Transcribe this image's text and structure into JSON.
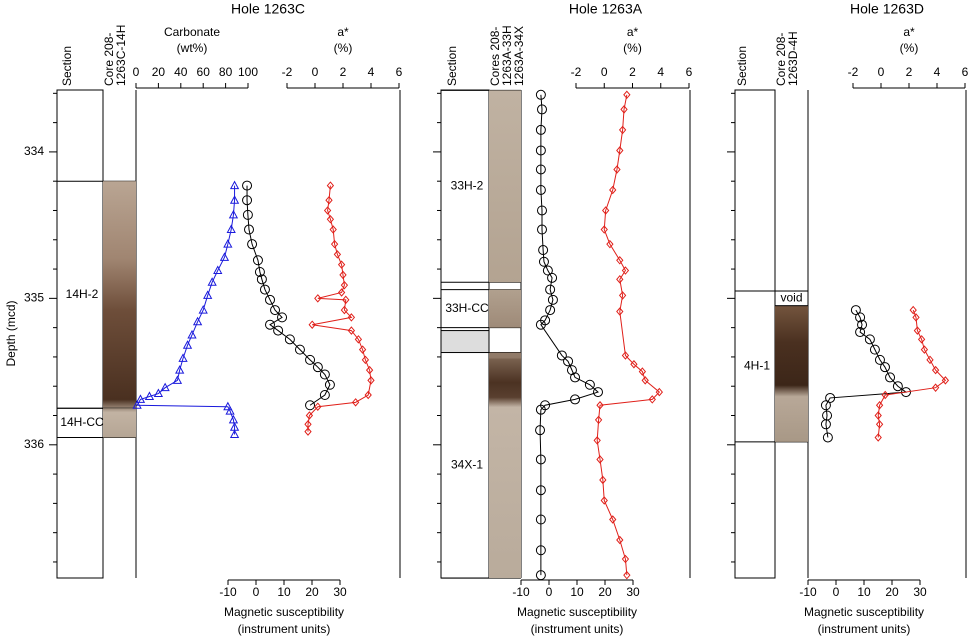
{
  "chart_data": [
    {
      "type": "line",
      "title": "Hole 1263C",
      "ylabel": "Depth (mcd)",
      "ylim": [
        333.55,
        336.93
      ],
      "yticks": [
        334,
        335,
        336
      ],
      "section_header": "Section",
      "core_header": [
        "Core 208-",
        "1263C-14H"
      ],
      "sections": [
        {
          "label": "14H-2",
          "top": 334.2,
          "bottom": 335.75
        },
        {
          "label": "14H-CC",
          "top": 335.75,
          "bottom": 335.95
        }
      ],
      "axes": [
        {
          "label": [
            "Carbonate",
            "(wt%)"
          ],
          "position": "top",
          "xlim": [
            0,
            100
          ],
          "xticks": [
            0,
            20,
            40,
            60,
            80,
            100
          ]
        },
        {
          "label": [
            "a*",
            "(%)"
          ],
          "position": "top",
          "xlim": [
            -2,
            6
          ],
          "xticks": [
            -2,
            0,
            2,
            4,
            6
          ]
        },
        {
          "label": [
            "Magnetic susceptibility",
            "(instrument units)"
          ],
          "position": "bottom",
          "xlim": [
            -10,
            30
          ],
          "xticks": [
            -10,
            0,
            10,
            20,
            30
          ]
        }
      ],
      "series": [
        {
          "axis": 0,
          "color": "#1a1adc",
          "marker": "triangle",
          "line": true,
          "values": [
            88,
            88,
            87,
            85,
            82,
            79,
            73,
            68,
            64,
            60,
            55,
            50,
            46,
            42,
            39,
            37,
            26,
            20,
            12,
            4,
            1,
            82,
            84,
            87,
            88,
            88
          ],
          "depths": [
            334.23,
            334.33,
            334.43,
            334.53,
            334.63,
            334.72,
            334.81,
            334.89,
            334.98,
            335.08,
            335.16,
            335.25,
            335.32,
            335.41,
            335.49,
            335.56,
            335.61,
            335.65,
            335.67,
            335.69,
            335.73,
            335.74,
            335.77,
            335.83,
            335.88,
            335.93
          ]
        },
        {
          "axis": 2,
          "color": "#000000",
          "marker": "circle",
          "line": true,
          "values": [
            -3.2,
            -3.2,
            -2.9,
            -2.5,
            -1.4,
            0.7,
            1.4,
            2.1,
            3.2,
            5,
            6.8,
            9.3,
            5,
            7.9,
            12.1,
            15.7,
            19.3,
            22.1,
            24.6,
            26.4,
            24.6,
            19.3
          ],
          "depths": [
            334.23,
            334.33,
            334.43,
            334.53,
            334.63,
            334.74,
            334.82,
            334.87,
            334.94,
            335.01,
            335.08,
            335.13,
            335.18,
            335.22,
            335.28,
            335.35,
            335.42,
            335.47,
            335.52,
            335.59,
            335.66,
            335.73
          ]
        },
        {
          "axis": 1,
          "color": "#e0201a",
          "marker": "diamond",
          "line": true,
          "values": [
            1.1,
            1.0,
            0.9,
            1.1,
            1.3,
            1.4,
            1.6,
            1.9,
            2,
            2.1,
            1.9,
            0.2,
            2.2,
            2.1,
            2.6,
            -0.2,
            2.6,
            3.1,
            3.4,
            3.6,
            3.9,
            4,
            3.8,
            2.9,
            0.2,
            -0.4,
            -0.5,
            -0.5
          ],
          "depths": [
            334.23,
            334.33,
            334.4,
            334.46,
            334.53,
            334.63,
            334.7,
            334.77,
            334.84,
            334.91,
            334.96,
            335.0,
            335.01,
            335.08,
            335.13,
            335.18,
            335.22,
            335.28,
            335.35,
            335.42,
            335.49,
            335.56,
            335.66,
            335.71,
            335.74,
            335.8,
            335.86,
            335.91
          ]
        }
      ]
    },
    {
      "type": "line",
      "title": "Hole 1263A",
      "ylim": [
        333.55,
        336.93
      ],
      "section_header": "Section",
      "core_header": [
        "Cores 208-",
        "1263A-33H",
        "1263A-34X"
      ],
      "sections": [
        {
          "label": "33H-2",
          "top": 333.58,
          "bottom": 334.89
        },
        {
          "label": "33H-CC",
          "top": 334.94,
          "bottom": 335.2
        },
        {
          "label": "34X-1",
          "top": 335.37,
          "bottom": 336.91
        }
      ],
      "gaps": [
        {
          "top": 335.22,
          "bottom": 335.37
        }
      ],
      "axes": [
        {
          "label": [
            "a*",
            "(%)"
          ],
          "position": "top",
          "xlim": [
            -2,
            6
          ],
          "xticks": [
            -2,
            0,
            2,
            4,
            6
          ]
        },
        {
          "label": [
            "Magnetic susceptibility",
            "(instrument units)"
          ],
          "position": "bottom",
          "xlim": [
            -10,
            30
          ],
          "xticks": [
            -10,
            0,
            10,
            20,
            30
          ]
        }
      ],
      "series": [
        {
          "axis": 1,
          "color": "#000000",
          "marker": "circle",
          "line": true,
          "values": [
            -2.9,
            -2.5,
            -2.9,
            -2.9,
            -2.9,
            -2.9,
            -2.5,
            -2.5,
            -2.1,
            -1.8,
            -0.4,
            1.1,
            0.4,
            1.4,
            0.4,
            -1.4,
            -2.9,
            4.6,
            6.8,
            8.2,
            9.3,
            14.6,
            17.5,
            9.3,
            -1.4,
            -2.9,
            -3.2,
            -2.9,
            -2.9,
            -2.9,
            -2.9,
            -2.9
          ],
          "depths": [
            333.61,
            333.71,
            333.85,
            333.99,
            334.12,
            334.26,
            334.4,
            334.53,
            334.67,
            334.75,
            334.81,
            334.86,
            334.94,
            335.01,
            335.08,
            335.15,
            335.18,
            335.39,
            335.43,
            335.49,
            335.54,
            335.59,
            335.64,
            335.69,
            335.73,
            335.76,
            335.9,
            336.1,
            336.31,
            336.51,
            336.72,
            336.89
          ]
        },
        {
          "axis": 0,
          "color": "#e0201a",
          "marker": "diamond",
          "line": true,
          "values": [
            1.6,
            1.4,
            1.3,
            1.1,
            0.9,
            0.6,
            0.1,
            0,
            0.4,
            1.1,
            1.5,
            1.1,
            1.3,
            1.1,
            1.5,
            2.1,
            2.7,
            2.9,
            3.9,
            3.4,
            -0.3,
            -0.4,
            -0.5,
            -0.3,
            -0.1,
            0,
            0.6,
            1.1,
            1.5,
            1.6
          ],
          "depths": [
            333.61,
            333.71,
            333.85,
            333.99,
            334.12,
            334.26,
            334.4,
            334.53,
            334.63,
            334.74,
            334.81,
            334.87,
            334.98,
            335.09,
            335.39,
            335.45,
            335.5,
            335.56,
            335.64,
            335.69,
            335.73,
            335.83,
            335.97,
            336.1,
            336.24,
            336.38,
            336.51,
            336.65,
            336.78,
            336.89
          ]
        }
      ]
    },
    {
      "type": "line",
      "title": "Hole 1263D",
      "ylim": [
        333.55,
        336.93
      ],
      "section_header": "Section",
      "core_header": [
        "Core 208-",
        "1263D-4H"
      ],
      "sections": [
        {
          "label": "4H-1",
          "top": 334.95,
          "bottom": 335.98
        }
      ],
      "voids": [
        {
          "label": "void",
          "top": 334.95,
          "bottom": 335.05
        }
      ],
      "axes": [
        {
          "label": [
            "a*",
            "(%)"
          ],
          "position": "top",
          "xlim": [
            -2,
            6
          ],
          "xticks": [
            -2,
            0,
            2,
            4,
            6
          ]
        },
        {
          "label": [
            "Magnetic susceptibility",
            "(instrument units)"
          ],
          "position": "bottom",
          "xlim": [
            -10,
            30
          ],
          "xticks": [
            -10,
            0,
            10,
            20,
            30
          ]
        }
      ],
      "series": [
        {
          "axis": 1,
          "color": "#000000",
          "marker": "circle",
          "line": true,
          "values": [
            7.1,
            8.6,
            9.3,
            8.6,
            12.1,
            13.9,
            15.7,
            17.5,
            19.3,
            22.1,
            25,
            -2.1,
            -3.6,
            -3.2,
            -3.6,
            -2.9
          ],
          "depths": [
            335.08,
            335.13,
            335.18,
            335.23,
            335.28,
            335.35,
            335.42,
            335.47,
            335.54,
            335.6,
            335.64,
            335.68,
            335.73,
            335.8,
            335.86,
            335.95
          ]
        },
        {
          "axis": 0,
          "color": "#e0201a",
          "marker": "diamond",
          "line": true,
          "values": [
            2.3,
            2.5,
            2.6,
            2.9,
            3.1,
            3.5,
            3.9,
            4.6,
            3.9,
            0.3,
            -0.1,
            -0.2,
            -0.1,
            -0.2
          ],
          "depths": [
            335.08,
            335.13,
            335.22,
            335.28,
            335.35,
            335.42,
            335.49,
            335.56,
            335.61,
            335.66,
            335.73,
            335.8,
            335.86,
            335.95
          ]
        }
      ]
    }
  ]
}
